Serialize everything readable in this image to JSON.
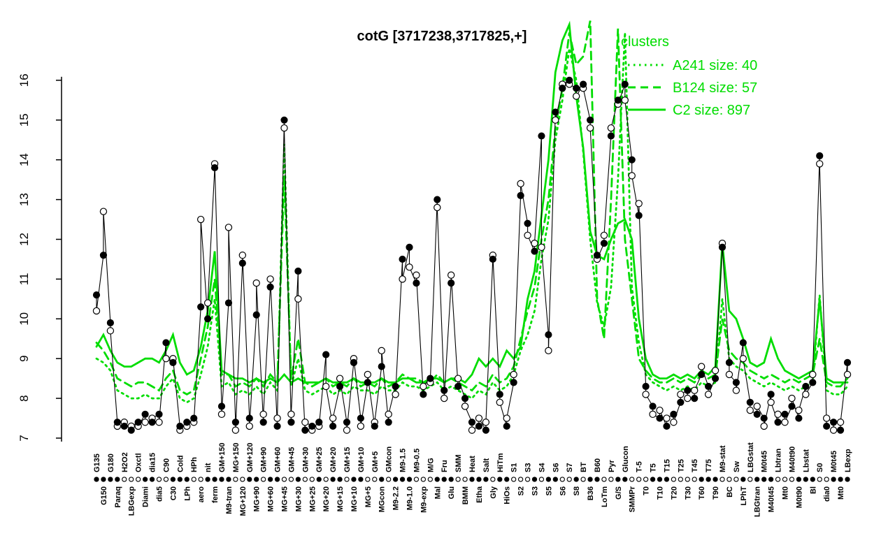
{
  "chart": {
    "title": "cotG [3717238,3717825,+]"
  },
  "legend": {
    "title": "clusters",
    "entries": [
      {
        "label": "A241 size: 40",
        "style": "dotted"
      },
      {
        "label": "B124 size: 57",
        "style": "dashed"
      },
      {
        "label": "C2 size: 897",
        "style": "solid"
      }
    ]
  },
  "colors": {
    "green": "#00dd00",
    "black": "#000000",
    "background": "#ffffff"
  },
  "chart_data": {
    "type": "line",
    "title": "cotG [3717238,3717825,+]",
    "xlabel": "",
    "ylabel": "",
    "ylim": [
      7,
      16
    ],
    "y_ticks": [
      7,
      8,
      9,
      10,
      11,
      12,
      13,
      14,
      15,
      16
    ],
    "grid": false,
    "legend_position": "top-right",
    "categories": [
      "G135",
      "G150",
      "G180",
      "Paraq",
      "H2O2",
      "LBGexp",
      "Oxctl",
      "Diami",
      "dia15",
      "dia5",
      "C90",
      "C30",
      "Cold",
      "LPh",
      "HPh",
      "aero",
      "nit",
      "ferm",
      "GM+150",
      "M9-tran",
      "MG+150",
      "MG+120",
      "GM+120",
      "MG+90",
      "GM+90",
      "MG+60",
      "GM+60",
      "MG+45",
      "GM+45",
      "MG+30",
      "GM+30",
      "MG+25",
      "GM+25",
      "MG+20",
      "GM+20",
      "MG+15",
      "GM+15",
      "MG+10",
      "GM+10",
      "MG+5",
      "GM+5",
      "MGcon",
      "GMcon",
      "M9-2.2",
      "M9-1.5",
      "M9-1.0",
      "M9-0.5",
      "M9-exp",
      "M/G",
      "Mal",
      "Fru",
      "Glu",
      "SMM",
      "BMM",
      "Heat",
      "Etha",
      "Salt",
      "Gly",
      "HiTm",
      "HiOs",
      "S1",
      "S2",
      "S3",
      "S3",
      "S4",
      "S5",
      "S6",
      "S6",
      "S7",
      "S8",
      "BT",
      "B36",
      "B60",
      "LoTm",
      "Pyr",
      "G/S",
      "Glucon",
      "SMMPr",
      "T-5",
      "T0",
      "T5",
      "T10",
      "T15",
      "T20",
      "T25",
      "T30",
      "T45",
      "T60",
      "T75",
      "T90",
      "M9-stat",
      "BC",
      "Sw",
      "LPhT",
      "LBGstat",
      "LBGtran",
      "M0t45",
      "M40t45",
      "Lbtran",
      "Mt0",
      "M40t90",
      "M0t90",
      "Lbstat",
      "Bl",
      "S0",
      "dia0",
      "M0t45",
      "Mt0",
      "LBexp"
    ],
    "marker_row": "ffffoooffoofffooffffooffoffoofoofoffoffoofofffooofffoofffoffooofoffoofoffooffooofffoooofffooofofffooofffoof",
    "series": [
      {
        "name": "gene profile replicate 1",
        "color": "black",
        "marker": "filled",
        "values": [
          10.6,
          11.6,
          9.9,
          7.4,
          7.3,
          7.2,
          7.4,
          7.6,
          7.4,
          7.6,
          9.4,
          8.9,
          7.3,
          7.4,
          7.5,
          10.3,
          10.0,
          13.8,
          7.8,
          10.4,
          7.4,
          11.4,
          7.5,
          10.1,
          7.4,
          10.8,
          7.3,
          15.0,
          7.4,
          11.2,
          7.2,
          7.3,
          7.4,
          9.1,
          7.3,
          8.3,
          7.4,
          8.9,
          7.5,
          8.4,
          7.3,
          8.8,
          7.4,
          8.3,
          11.5,
          11.8,
          10.9,
          8.1,
          8.5,
          13.0,
          8.2,
          10.9,
          8.3,
          8.0,
          7.4,
          7.3,
          7.2,
          11.5,
          8.1,
          7.3,
          8.4,
          13.1,
          12.4,
          11.7,
          14.6,
          9.6,
          15.2,
          15.8,
          16.0,
          15.8,
          15.9,
          15.0,
          11.6,
          11.9,
          14.6,
          15.5,
          15.9,
          14.0,
          12.6,
          8.3,
          7.8,
          7.5,
          7.3,
          7.6,
          7.9,
          8.2,
          8.0,
          8.6,
          8.3,
          8.5,
          11.8,
          8.9,
          8.4,
          9.4,
          7.9,
          7.6,
          7.5,
          8.1,
          7.4,
          7.6,
          7.8,
          7.5,
          8.3,
          8.4,
          14.1,
          7.3,
          7.4,
          7.2,
          8.9
        ]
      },
      {
        "name": "gene profile replicate 2",
        "color": "black",
        "marker": "open",
        "values": [
          10.2,
          12.7,
          9.7,
          7.3,
          7.4,
          7.3,
          7.3,
          7.4,
          7.5,
          7.4,
          9.0,
          9.0,
          7.2,
          7.3,
          7.4,
          12.5,
          10.4,
          13.9,
          7.6,
          12.3,
          7.2,
          11.6,
          7.3,
          10.9,
          7.6,
          11.0,
          7.5,
          14.8,
          7.6,
          10.5,
          7.4,
          7.2,
          7.3,
          8.3,
          7.5,
          8.5,
          7.2,
          9.0,
          7.3,
          8.6,
          7.4,
          9.2,
          7.6,
          8.1,
          11.0,
          11.3,
          11.1,
          8.3,
          8.4,
          12.8,
          8.0,
          11.1,
          8.5,
          7.8,
          7.2,
          7.5,
          7.4,
          11.6,
          7.9,
          7.5,
          8.6,
          13.4,
          12.1,
          11.9,
          11.8,
          9.2,
          15.0,
          15.9,
          15.9,
          15.6,
          15.8,
          14.8,
          11.5,
          12.1,
          14.8,
          15.4,
          15.5,
          13.6,
          12.9,
          8.1,
          7.6,
          7.7,
          7.5,
          7.4,
          8.1,
          8.0,
          8.2,
          8.8,
          8.1,
          8.7,
          11.9,
          8.6,
          8.2,
          9.0,
          7.7,
          7.8,
          7.3,
          7.9,
          7.6,
          7.4,
          8.0,
          7.7,
          8.1,
          8.6,
          13.9,
          7.5,
          7.2,
          7.4,
          8.6
        ]
      },
      {
        "name": "A241",
        "cluster_size": 40,
        "color": "green",
        "style": "dotted",
        "values": [
          9.0,
          8.9,
          8.7,
          8.2,
          8.1,
          8.0,
          8.0,
          8.1,
          8.0,
          8.0,
          8.3,
          8.5,
          8.0,
          7.9,
          8.0,
          8.6,
          9.3,
          10.5,
          8.3,
          8.4,
          8.1,
          8.2,
          8.1,
          8.3,
          8.1,
          8.4,
          8.2,
          14.4,
          8.3,
          9.0,
          8.2,
          8.1,
          8.2,
          8.3,
          8.1,
          8.2,
          8.1,
          8.3,
          8.2,
          8.2,
          8.1,
          8.3,
          8.2,
          8.2,
          8.4,
          8.3,
          8.3,
          8.2,
          8.3,
          8.4,
          8.2,
          8.3,
          8.2,
          8.1,
          8.0,
          8.2,
          8.1,
          8.4,
          8.2,
          8.3,
          8.6,
          9.2,
          9.6,
          10.2,
          11.5,
          12.5,
          14.5,
          15.5,
          16.8,
          16.0,
          14.2,
          12.0,
          10.4,
          9.8,
          10.8,
          13.5,
          17.2,
          10.8,
          9.4,
          8.6,
          8.4,
          8.3,
          8.2,
          8.3,
          8.2,
          8.3,
          8.2,
          8.4,
          8.3,
          8.4,
          10.5,
          9.0,
          8.8,
          8.7,
          8.5,
          8.4,
          8.3,
          8.4,
          8.3,
          8.2,
          8.3,
          8.2,
          8.3,
          8.4,
          10.6,
          8.2,
          8.1,
          8.1,
          8.3
        ]
      },
      {
        "name": "B124",
        "cluster_size": 57,
        "color": "green",
        "style": "dashed",
        "values": [
          9.4,
          9.2,
          8.9,
          8.5,
          8.4,
          8.3,
          8.4,
          8.4,
          8.3,
          8.2,
          8.5,
          8.7,
          8.2,
          8.1,
          8.2,
          9.0,
          9.8,
          11.0,
          8.6,
          8.6,
          8.3,
          8.4,
          8.3,
          8.5,
          8.3,
          8.6,
          8.4,
          13.6,
          8.5,
          9.5,
          8.4,
          8.3,
          8.4,
          8.5,
          8.3,
          8.4,
          8.3,
          8.5,
          8.3,
          8.4,
          8.3,
          8.5,
          8.3,
          8.4,
          8.6,
          8.5,
          8.5,
          8.4,
          8.4,
          8.6,
          8.4,
          8.5,
          8.4,
          8.3,
          8.2,
          8.4,
          8.3,
          8.6,
          8.4,
          8.5,
          8.8,
          9.5,
          10.2,
          10.8,
          12.0,
          13.0,
          14.8,
          15.8,
          17.2,
          16.4,
          16.6,
          17.5,
          10.5,
          9.5,
          13.0,
          17.3,
          12.0,
          10.5,
          9.0,
          8.7,
          8.5,
          8.4,
          8.4,
          8.5,
          8.4,
          8.5,
          8.4,
          8.6,
          8.5,
          8.6,
          10.0,
          9.2,
          9.0,
          8.9,
          8.7,
          8.6,
          8.5,
          8.6,
          8.5,
          8.4,
          8.5,
          8.4,
          8.5,
          8.6,
          9.5,
          8.4,
          8.3,
          8.3,
          8.5
        ]
      },
      {
        "name": "C2",
        "cluster_size": 897,
        "color": "green",
        "style": "solid",
        "values": [
          9.3,
          9.6,
          9.2,
          8.9,
          8.8,
          8.8,
          8.9,
          9.0,
          9.0,
          8.9,
          9.2,
          9.6,
          8.9,
          8.6,
          8.7,
          9.3,
          10.2,
          11.7,
          8.7,
          8.6,
          8.5,
          8.5,
          8.4,
          8.5,
          8.4,
          8.5,
          8.4,
          8.6,
          8.4,
          8.5,
          8.4,
          8.4,
          8.4,
          8.5,
          8.4,
          8.4,
          8.4,
          8.5,
          8.4,
          8.4,
          8.4,
          8.5,
          8.4,
          8.4,
          8.5,
          8.5,
          8.4,
          8.4,
          8.5,
          8.5,
          8.4,
          8.5,
          8.5,
          8.4,
          8.6,
          9.0,
          8.8,
          9.0,
          8.8,
          9.2,
          9.0,
          9.3,
          10.5,
          11.2,
          12.6,
          14.0,
          16.2,
          17.0,
          17.4,
          15.6,
          14.3,
          12.2,
          11.6,
          11.5,
          12.0,
          12.4,
          12.5,
          12.0,
          10.0,
          9.0,
          8.6,
          8.5,
          8.5,
          8.6,
          8.5,
          8.6,
          8.5,
          8.7,
          8.6,
          8.8,
          11.9,
          10.2,
          10.0,
          9.5,
          8.9,
          8.8,
          8.9,
          9.5,
          9.0,
          8.7,
          8.6,
          8.5,
          8.6,
          8.7,
          10.5,
          8.5,
          8.4,
          8.4,
          8.4
        ]
      }
    ]
  }
}
